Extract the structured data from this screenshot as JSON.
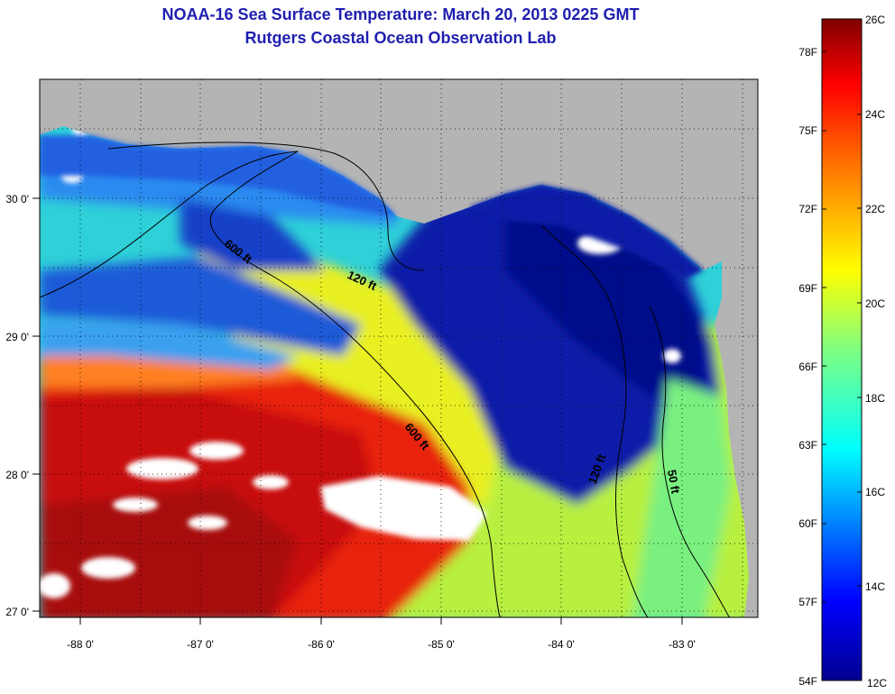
{
  "title": "NOAA-16 Sea Surface Temperature:  March 20, 2013 0225 GMT",
  "subtitle": "Rutgers Coastal Ocean Observation Lab",
  "map": {
    "longitude_ticks": [
      "-88 0'",
      "-87 0'",
      "-86 0'",
      "-85 0'",
      "-84 0'",
      "-83 0'"
    ],
    "latitude_ticks": [
      "30 0'",
      "29 0'",
      "28 0'",
      "27 0'"
    ],
    "lon_range": [
      -88.33,
      -82.43
    ],
    "lat_range": [
      26.95,
      30.85
    ],
    "contour_labels": [
      "600 ft",
      "120 ft",
      "600 ft",
      "120 ft",
      "50 ft"
    ],
    "colors": {
      "land": "#b4b4b4",
      "cloud": "#ffffff",
      "title": "#1f1fb0"
    }
  },
  "colorbar": {
    "celsius_labels": [
      "26C",
      "24C",
      "22C",
      "20C",
      "18C",
      "16C",
      "14C",
      "12C"
    ],
    "fahrenheit_labels": [
      "78F",
      "75F",
      "72F",
      "69F",
      "66F",
      "63F",
      "60F",
      "57F",
      "54F"
    ],
    "range_celsius": [
      12,
      26
    ],
    "colors": [
      "#00008f",
      "#0000ff",
      "#0080ff",
      "#00ffff",
      "#80ff80",
      "#ffff00",
      "#ff8000",
      "#ff0000",
      "#800000"
    ]
  }
}
